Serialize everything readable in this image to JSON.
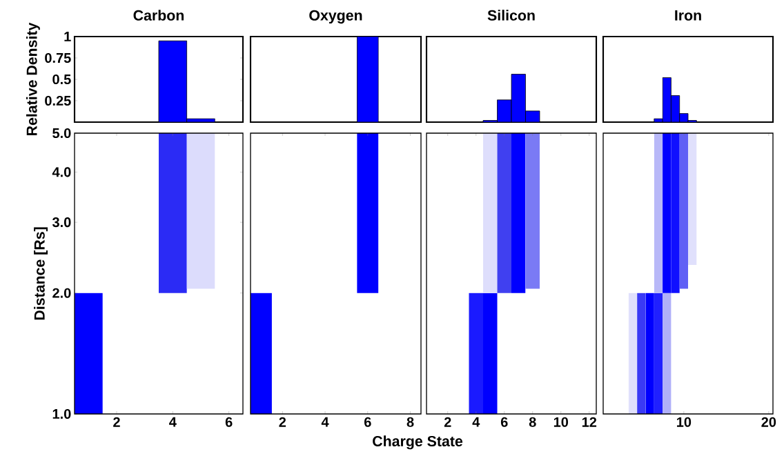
{
  "chart_data": [
    {
      "type": "bar",
      "title": "Carbon",
      "ylabel": "Relative Density",
      "x": [
        4,
        5
      ],
      "values": [
        0.95,
        0.04
      ],
      "color": "#0000ff",
      "xlim": [
        0.5,
        6.5
      ],
      "ylim": [
        0,
        1
      ],
      "yticks": [
        0.25,
        0.5,
        0.75,
        1
      ],
      "tick_labels": "y"
    },
    {
      "type": "bar",
      "title": "Oxygen",
      "x": [
        6
      ],
      "values": [
        1
      ],
      "color": "#0000ff",
      "xlim": [
        0.5,
        8.5
      ],
      "ylim": [
        0,
        1
      ],
      "tick_labels": false
    },
    {
      "type": "bar",
      "title": "Silicon",
      "x": [
        5,
        6,
        7,
        8
      ],
      "values": [
        0.02,
        0.26,
        0.56,
        0.13
      ],
      "color": "#0000ff",
      "xlim": [
        0.5,
        12.5
      ],
      "ylim": [
        0,
        1
      ],
      "tick_labels": false
    },
    {
      "type": "bar",
      "title": "Iron",
      "x": [
        7,
        8,
        9,
        10,
        11
      ],
      "values": [
        0.04,
        0.52,
        0.31,
        0.1,
        0.02
      ],
      "color": "#0000ff",
      "xlim": [
        0.5,
        20.5
      ],
      "ylim": [
        0,
        1
      ],
      "tick_labels": false
    },
    {
      "type": "bar",
      "ylabel": "Distance [Rs]",
      "x": [
        1,
        4,
        5
      ],
      "base": [
        1.0,
        2.0,
        2.05
      ],
      "values": [
        1.0,
        3.0,
        2.95
      ],
      "colors": [
        "#0000ff",
        "#2b2bf5",
        "#dcdcfc"
      ],
      "log": "y",
      "xlim": [
        0.5,
        6.5
      ],
      "ylim": [
        1,
        5
      ],
      "xticks": [
        2,
        4,
        6
      ],
      "yticks": [
        {
          "value": 1,
          "label": "1.0"
        },
        {
          "value": 2,
          "label": "2.0"
        },
        {
          "value": 3,
          "label": "3.0"
        },
        {
          "value": 4,
          "label": "4.0"
        },
        {
          "value": 5,
          "label": "5.0"
        }
      ]
    },
    {
      "type": "bar",
      "xlabel": "Charge State",
      "x": [
        1,
        6
      ],
      "base": [
        1.0,
        2.0
      ],
      "values": [
        1.0,
        3.0
      ],
      "colors": [
        "#0000ff",
        "#0000ff"
      ],
      "log": "y",
      "xlim": [
        0.5,
        8.5
      ],
      "ylim": [
        1,
        5
      ],
      "xticks": [
        2,
        4,
        6,
        8
      ],
      "tick_labels": "x"
    },
    {
      "type": "bar",
      "series": [
        {
          "x": [
            4,
            5
          ],
          "base": [
            1.0,
            1.0
          ],
          "values": [
            1.0,
            1.0
          ],
          "colors": [
            "#1a1aff",
            "#0000ff"
          ]
        },
        {
          "x": [
            5,
            6,
            7,
            8
          ],
          "base": [
            2.0,
            2.0,
            2.0,
            2.05
          ],
          "values": [
            3.0,
            3.0,
            3.0,
            2.95
          ],
          "colors": [
            "#dedefc",
            "#4040f0",
            "#0000ff",
            "#7a7af5"
          ]
        }
      ],
      "log": "y",
      "xlim": [
        0.5,
        12.5
      ],
      "ylim": [
        1,
        5
      ],
      "xticks": [
        2,
        4,
        6,
        8,
        10,
        12
      ],
      "tick_labels": "x"
    },
    {
      "type": "bar",
      "series": [
        {
          "x": [
            4,
            5,
            6,
            7,
            8
          ],
          "base": [
            1.0,
            1.0,
            1.0,
            1.0,
            1.0
          ],
          "values": [
            1.0,
            1.0,
            1.0,
            1.0,
            1.0
          ],
          "colors": [
            "#e0e0fc",
            "#3a3af5",
            "#0000ff",
            "#2020ff",
            "#b0b0f8"
          ]
        },
        {
          "x": [
            7,
            8,
            9,
            10,
            11
          ],
          "base": [
            2.0,
            2.0,
            2.0,
            2.05,
            2.35
          ],
          "values": [
            3.0,
            3.0,
            3.0,
            2.95,
            2.65
          ],
          "colors": [
            "#b8b8f8",
            "#0000ff",
            "#1010ff",
            "#6060f5",
            "#e0e0fc"
          ]
        }
      ],
      "log": "y",
      "xlim": [
        0.5,
        20.5
      ],
      "ylim": [
        1,
        5
      ],
      "xticks": [
        10,
        20
      ],
      "tick_labels": "x"
    }
  ]
}
